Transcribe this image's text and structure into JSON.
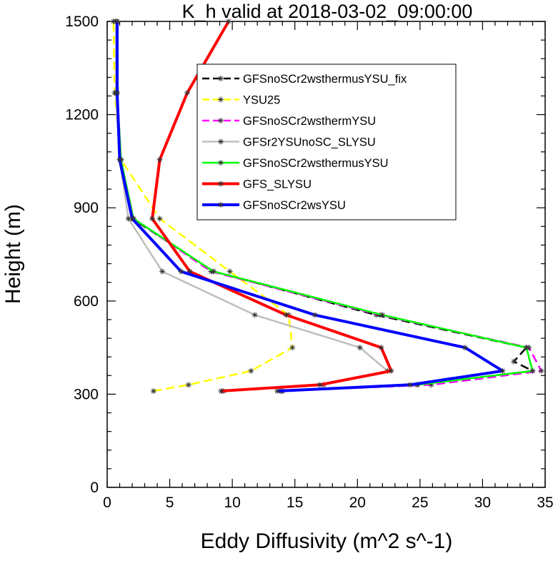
{
  "chart_data": {
    "type": "line",
    "title": "K_h valid at 2018-03-02_09:00:00",
    "xlabel": "Eddy Diffusivity (m^2 s^-1)",
    "ylabel": "Height (m)",
    "xlim": [
      0,
      35
    ],
    "ylim": [
      0,
      1500
    ],
    "xticks": [
      "0",
      "5",
      "10",
      "15",
      "20",
      "25",
      "30",
      "35"
    ],
    "yticks": [
      "0",
      "300",
      "600",
      "900",
      "1200",
      "1500"
    ],
    "grid": false,
    "legend_position": "top-right",
    "series": [
      {
        "name": "GFSnoSCr2wsthermusYSU_fix",
        "color": "#000000",
        "style": "dashed",
        "points": [
          [
            13.9,
            310
          ],
          [
            24.8,
            330
          ],
          [
            34.0,
            375
          ],
          [
            32.5,
            405
          ],
          [
            33.5,
            450
          ],
          [
            21.5,
            555
          ],
          [
            8.5,
            695
          ],
          [
            2.0,
            865
          ],
          [
            1.1,
            1055
          ],
          [
            0.8,
            1270
          ],
          [
            0.8,
            1500
          ]
        ]
      },
      {
        "name": "YSU25",
        "color": "#ffff00",
        "style": "dashed",
        "points": [
          [
            3.7,
            310
          ],
          [
            6.5,
            330
          ],
          [
            11.5,
            375
          ],
          [
            14.8,
            450
          ],
          [
            14.5,
            555
          ],
          [
            9.8,
            695
          ],
          [
            4.2,
            865
          ],
          [
            1.1,
            1055
          ],
          [
            0.6,
            1270
          ],
          [
            0.5,
            1500
          ]
        ]
      },
      {
        "name": "GFSnoSCr2wsthermYSU",
        "color": "#ff00ff",
        "style": "dashed",
        "points": [
          [
            14.0,
            310
          ],
          [
            25.9,
            330
          ],
          [
            34.7,
            375
          ],
          [
            33.7,
            450
          ],
          [
            21.8,
            555
          ],
          [
            8.3,
            695
          ],
          [
            2.1,
            865
          ],
          [
            1.1,
            1055
          ],
          [
            0.8,
            1270
          ],
          [
            0.8,
            1500
          ]
        ]
      },
      {
        "name": "GFSr2YSUnoSC_SLYSU",
        "color": "#bebebe",
        "style": "solid",
        "points": [
          [
            9.3,
            310
          ],
          [
            17.3,
            330
          ],
          [
            22.4,
            375
          ],
          [
            20.2,
            450
          ],
          [
            11.8,
            555
          ],
          [
            4.4,
            695
          ],
          [
            1.7,
            865
          ],
          [
            1.0,
            1055
          ],
          [
            0.7,
            1270
          ],
          [
            0.7,
            1500
          ]
        ]
      },
      {
        "name": "GFSnoSCr2wsthermusYSU",
        "color": "#00ff00",
        "style": "solid",
        "points": [
          [
            13.9,
            310
          ],
          [
            24.8,
            330
          ],
          [
            34.0,
            375
          ],
          [
            33.5,
            450
          ],
          [
            22.0,
            555
          ],
          [
            8.5,
            695
          ],
          [
            2.1,
            865
          ],
          [
            1.1,
            1055
          ],
          [
            0.8,
            1270
          ],
          [
            0.8,
            1500
          ]
        ]
      },
      {
        "name": "GFS_SLYSU",
        "color": "#ff0000",
        "style": "solid",
        "points": [
          [
            9.1,
            310
          ],
          [
            17.0,
            330
          ],
          [
            22.7,
            375
          ],
          [
            21.9,
            450
          ],
          [
            14.3,
            555
          ],
          [
            6.6,
            695
          ],
          [
            3.6,
            865
          ],
          [
            4.2,
            1055
          ],
          [
            6.4,
            1270
          ],
          [
            9.7,
            1500
          ]
        ]
      },
      {
        "name": "GFSnoSCr2wsYSU",
        "color": "#0000ff",
        "style": "solid",
        "points": [
          [
            13.6,
            310
          ],
          [
            24.2,
            330
          ],
          [
            31.6,
            375
          ],
          [
            28.6,
            450
          ],
          [
            16.6,
            555
          ],
          [
            5.9,
            695
          ],
          [
            2.0,
            865
          ],
          [
            1.0,
            1055
          ],
          [
            0.8,
            1270
          ],
          [
            0.8,
            1500
          ]
        ]
      }
    ]
  }
}
